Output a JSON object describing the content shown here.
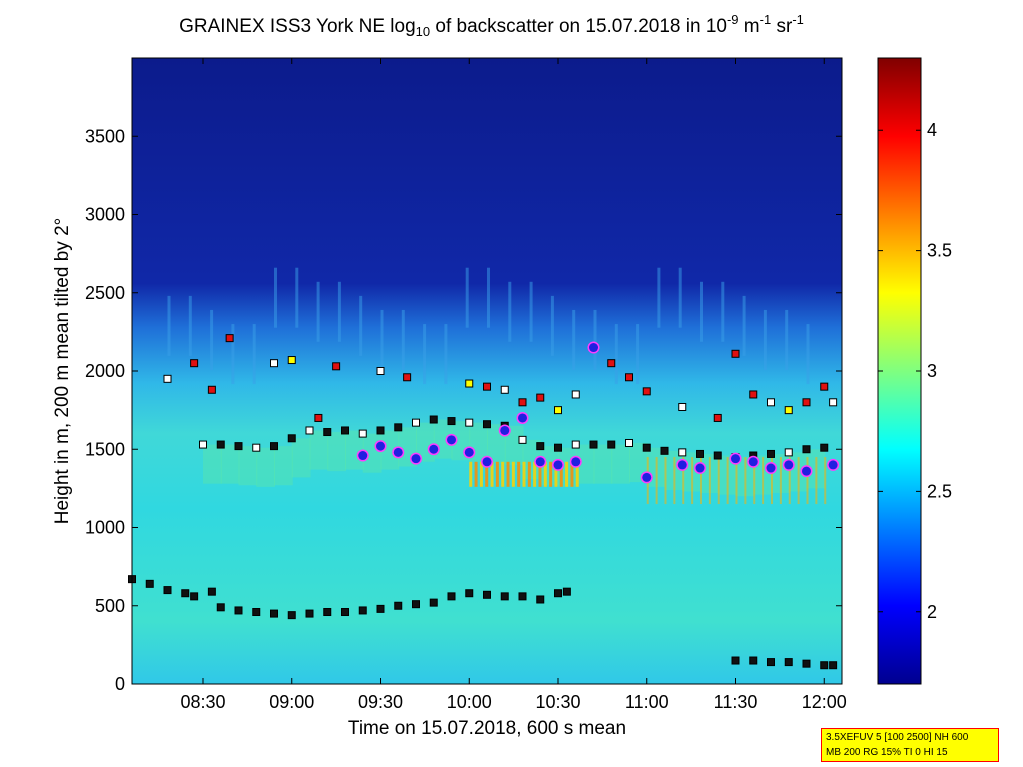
{
  "title": {
    "prefix": "GRAINEX ISS3 York NE log",
    "base_sub": "10",
    "middle": " of backscatter on 15.07.2018 in 10",
    "exp1": "-9",
    "unit_m": " m",
    "exp2": "-1",
    "unit_sr": " sr",
    "exp3": "-1"
  },
  "info_box": {
    "line1": "3.5XEFUV 5 [100 2500] NH 600",
    "line2": "MB 200 RG 15% TI 0 HI 15"
  },
  "colors": {
    "background_low": "#0b1a8f",
    "background_mid": "#2fd8d8",
    "marker_red": "#e01010",
    "marker_white": "#ffffff",
    "marker_yellow": "#ffff00",
    "marker_black": "#111111",
    "marker_blue": "#2020e0",
    "marker_magenta": "#ff3cff"
  },
  "chart_data": {
    "type": "heatmap",
    "xlabel": "Time on 15.07.2018, 600 s mean",
    "ylabel": "Height in m, 200 m mean tilted by 2°",
    "x_range_hours": [
      8.1,
      12.1
    ],
    "ylim": [
      0,
      4000
    ],
    "x_ticks": [
      {
        "label": "08:30",
        "value": 8.5
      },
      {
        "label": "09:00",
        "value": 9.0
      },
      {
        "label": "09:30",
        "value": 9.5
      },
      {
        "label": "10:00",
        "value": 10.0
      },
      {
        "label": "10:30",
        "value": 10.5
      },
      {
        "label": "11:00",
        "value": 11.0
      },
      {
        "label": "11:30",
        "value": 11.5
      },
      {
        "label": "12:00",
        "value": 12.0
      }
    ],
    "y_ticks": [
      0,
      500,
      1000,
      1500,
      2000,
      2500,
      3000,
      3500
    ],
    "colorbar": {
      "range": [
        1.7,
        4.3
      ],
      "ticks": [
        2,
        2.5,
        3,
        3.5,
        4
      ],
      "colormap": "jet"
    },
    "layers": [
      {
        "name": "Low aerosol layer (black squares)",
        "color": "#111111",
        "points": [
          [
            8.1,
            670
          ],
          [
            8.2,
            640
          ],
          [
            8.3,
            600
          ],
          [
            8.4,
            580
          ],
          [
            8.45,
            560
          ],
          [
            8.55,
            590
          ],
          [
            8.6,
            490
          ],
          [
            8.7,
            470
          ],
          [
            8.8,
            460
          ],
          [
            8.9,
            450
          ],
          [
            9.0,
            440
          ],
          [
            9.1,
            450
          ],
          [
            9.2,
            460
          ],
          [
            9.3,
            460
          ],
          [
            9.4,
            470
          ],
          [
            9.5,
            480
          ],
          [
            9.6,
            500
          ],
          [
            9.7,
            510
          ],
          [
            9.8,
            520
          ],
          [
            9.9,
            560
          ],
          [
            10.0,
            580
          ],
          [
            10.1,
            570
          ],
          [
            10.2,
            560
          ],
          [
            10.3,
            560
          ],
          [
            10.4,
            540
          ],
          [
            10.5,
            580
          ],
          [
            10.55,
            590
          ]
        ]
      },
      {
        "name": "Late low layer (black squares)",
        "color": "#111111",
        "points": [
          [
            11.5,
            150
          ],
          [
            11.6,
            150
          ],
          [
            11.7,
            140
          ],
          [
            11.8,
            140
          ],
          [
            11.9,
            130
          ],
          [
            12.0,
            120
          ],
          [
            12.05,
            120
          ]
        ]
      },
      {
        "name": "Mixing layer top (black/white squares)",
        "color": "#111111",
        "points": [
          [
            8.5,
            1530
          ],
          [
            8.6,
            1530
          ],
          [
            8.7,
            1520
          ],
          [
            8.8,
            1510
          ],
          [
            8.9,
            1520
          ],
          [
            9.0,
            1570
          ],
          [
            9.1,
            1620
          ],
          [
            9.2,
            1610
          ],
          [
            9.3,
            1620
          ],
          [
            9.4,
            1600
          ],
          [
            9.5,
            1620
          ],
          [
            9.6,
            1640
          ],
          [
            9.7,
            1670
          ],
          [
            9.8,
            1690
          ],
          [
            9.9,
            1680
          ],
          [
            10.0,
            1670
          ],
          [
            10.1,
            1660
          ],
          [
            10.2,
            1650
          ],
          [
            10.3,
            1560
          ],
          [
            10.4,
            1520
          ],
          [
            10.5,
            1510
          ],
          [
            10.6,
            1530
          ],
          [
            10.7,
            1530
          ],
          [
            10.8,
            1530
          ],
          [
            10.9,
            1540
          ],
          [
            11.0,
            1510
          ],
          [
            11.1,
            1490
          ],
          [
            11.2,
            1480
          ],
          [
            11.3,
            1470
          ],
          [
            11.4,
            1460
          ],
          [
            11.5,
            1450
          ],
          [
            11.6,
            1460
          ],
          [
            11.7,
            1470
          ],
          [
            11.8,
            1480
          ],
          [
            11.9,
            1500
          ],
          [
            12.0,
            1510
          ]
        ]
      },
      {
        "name": "Cloud base (blue/magenta circles)",
        "color": "#2020e0",
        "points": [
          [
            9.4,
            1460
          ],
          [
            9.5,
            1520
          ],
          [
            9.6,
            1480
          ],
          [
            9.7,
            1440
          ],
          [
            9.8,
            1500
          ],
          [
            9.9,
            1560
          ],
          [
            10.0,
            1480
          ],
          [
            10.1,
            1420
          ],
          [
            10.2,
            1620
          ],
          [
            10.3,
            1700
          ],
          [
            10.4,
            1420
          ],
          [
            10.5,
            1400
          ],
          [
            10.6,
            1420
          ],
          [
            10.7,
            2150
          ],
          [
            11.0,
            1320
          ],
          [
            11.2,
            1400
          ],
          [
            11.3,
            1380
          ],
          [
            11.5,
            1440
          ],
          [
            11.6,
            1420
          ],
          [
            11.7,
            1380
          ],
          [
            11.8,
            1400
          ],
          [
            11.9,
            1360
          ],
          [
            12.05,
            1400
          ]
        ]
      },
      {
        "name": "Upper aerosol (red/white/yellow squares)",
        "color": "#e01010",
        "points": [
          [
            8.3,
            1950
          ],
          [
            8.45,
            2050
          ],
          [
            8.55,
            1880
          ],
          [
            8.65,
            2210
          ],
          [
            8.9,
            2050
          ],
          [
            9.0,
            2070
          ],
          [
            9.15,
            1700
          ],
          [
            9.25,
            2030
          ],
          [
            9.5,
            2000
          ],
          [
            9.65,
            1960
          ],
          [
            10.0,
            1920
          ],
          [
            10.1,
            1900
          ],
          [
            10.2,
            1880
          ],
          [
            10.3,
            1800
          ],
          [
            10.4,
            1830
          ],
          [
            10.5,
            1750
          ],
          [
            10.6,
            1850
          ],
          [
            10.8,
            2050
          ],
          [
            10.9,
            1960
          ],
          [
            11.0,
            1870
          ],
          [
            11.2,
            1770
          ],
          [
            11.4,
            1700
          ],
          [
            11.5,
            2110
          ],
          [
            11.6,
            1850
          ],
          [
            11.7,
            1800
          ],
          [
            11.8,
            1750
          ],
          [
            11.9,
            1800
          ],
          [
            12.0,
            1900
          ],
          [
            12.05,
            1800
          ]
        ]
      }
    ]
  }
}
